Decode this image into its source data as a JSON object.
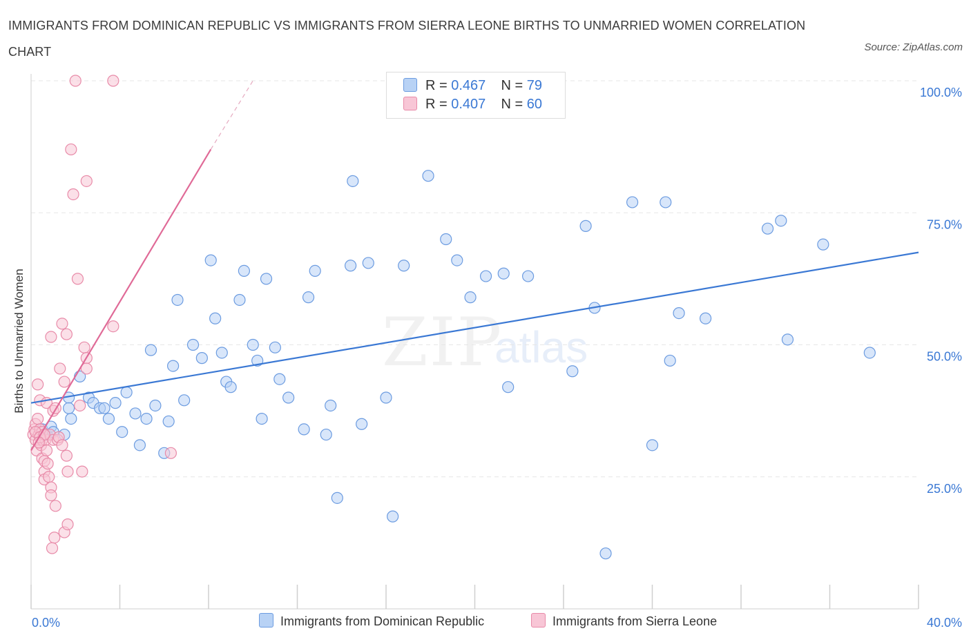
{
  "title": "IMMIGRANTS FROM DOMINICAN REPUBLIC VS IMMIGRANTS FROM SIERRA LEONE BIRTHS TO UNMARRIED WOMEN CORRELATION CHART",
  "source": "Source: ZipAtlas.com",
  "watermark": {
    "zip": "ZIP",
    "atlas": "atlas"
  },
  "legend_top": [
    {
      "r_label": "R =",
      "r_value": "0.467",
      "n_label": "N =",
      "n_value": "79"
    },
    {
      "r_label": "R =",
      "r_value": "0.407",
      "n_label": "N =",
      "n_value": "60"
    }
  ],
  "legend_bottom": [
    "Immigrants from Dominican Republic",
    "Immigrants from Sierra Leone"
  ],
  "colors": {
    "blue_fill": "#b8d2f5",
    "blue_stroke": "#6b9be0",
    "blue_line": "#3a78d4",
    "pink_fill": "#f8c6d6",
    "pink_stroke": "#e88aa8",
    "pink_line": "#e06a97",
    "tick_label": "#3a78d4",
    "grid": "#e6e6e6"
  },
  "chart_data": {
    "type": "scatter",
    "xlabel": "",
    "ylabel": "Births to Unmarried Women",
    "xlim": [
      0,
      40
    ],
    "ylim": [
      0,
      100
    ],
    "x_tick_labels": [
      {
        "v": 0,
        "t": "0.0%"
      },
      {
        "v": 40,
        "t": "40.0%"
      }
    ],
    "y_tick_labels": [
      {
        "v": 25,
        "t": "25.0%"
      },
      {
        "v": 50,
        "t": "50.0%"
      },
      {
        "v": 75,
        "t": "75.0%"
      },
      {
        "v": 100,
        "t": "100.0%"
      }
    ],
    "grid": true,
    "series": [
      {
        "name": "Immigrants from Dominican Republic",
        "color": "blue",
        "points": [
          [
            0.5,
            34
          ],
          [
            0.7,
            33
          ],
          [
            0.9,
            34.5
          ],
          [
            1.0,
            33.5
          ],
          [
            1.5,
            33
          ],
          [
            1.7,
            40
          ],
          [
            1.8,
            36
          ],
          [
            1.7,
            38
          ],
          [
            2.2,
            44
          ],
          [
            2.6,
            40
          ],
          [
            2.8,
            39
          ],
          [
            3.1,
            38
          ],
          [
            3.3,
            38
          ],
          [
            3.5,
            36
          ],
          [
            3.8,
            39
          ],
          [
            4.1,
            33.5
          ],
          [
            4.3,
            41
          ],
          [
            4.7,
            37
          ],
          [
            4.9,
            31
          ],
          [
            5.2,
            36
          ],
          [
            5.4,
            49
          ],
          [
            5.6,
            38.5
          ],
          [
            6.0,
            29.5
          ],
          [
            6.2,
            35.5
          ],
          [
            6.4,
            46
          ],
          [
            6.6,
            58.5
          ],
          [
            6.9,
            39.5
          ],
          [
            7.3,
            50
          ],
          [
            7.7,
            47.5
          ],
          [
            8.1,
            66
          ],
          [
            8.3,
            55
          ],
          [
            8.6,
            48.5
          ],
          [
            8.8,
            43
          ],
          [
            9.0,
            42
          ],
          [
            9.4,
            58.5
          ],
          [
            9.6,
            64
          ],
          [
            10.0,
            50
          ],
          [
            10.2,
            47
          ],
          [
            10.4,
            36
          ],
          [
            10.6,
            62.5
          ],
          [
            11.0,
            49.5
          ],
          [
            11.2,
            43.5
          ],
          [
            11.6,
            40
          ],
          [
            12.3,
            34
          ],
          [
            12.5,
            59
          ],
          [
            12.8,
            64
          ],
          [
            13.3,
            33
          ],
          [
            13.5,
            38.5
          ],
          [
            13.8,
            21
          ],
          [
            14.4,
            65
          ],
          [
            14.5,
            81
          ],
          [
            14.9,
            35
          ],
          [
            15.2,
            65.5
          ],
          [
            16.0,
            40
          ],
          [
            16.3,
            17.5
          ],
          [
            16.8,
            65
          ],
          [
            17.9,
            82
          ],
          [
            18.7,
            70
          ],
          [
            19.2,
            66
          ],
          [
            19.8,
            59
          ],
          [
            20.5,
            63
          ],
          [
            21.3,
            63.5
          ],
          [
            21.5,
            42
          ],
          [
            22.4,
            63
          ],
          [
            24.4,
            45
          ],
          [
            25.0,
            72.5
          ],
          [
            25.4,
            57
          ],
          [
            25.9,
            10.5
          ],
          [
            27.1,
            77
          ],
          [
            28.0,
            31
          ],
          [
            28.6,
            77
          ],
          [
            28.8,
            47
          ],
          [
            29.2,
            56
          ],
          [
            30.4,
            55
          ],
          [
            33.2,
            72
          ],
          [
            33.8,
            73.5
          ],
          [
            34.1,
            51
          ],
          [
            35.7,
            69
          ],
          [
            37.8,
            48.5
          ]
        ],
        "trend": {
          "x": [
            0,
            40
          ],
          "y": [
            39,
            67.5
          ]
        }
      },
      {
        "name": "Immigrants from Sierra Leone",
        "color": "pink",
        "points": [
          [
            0.1,
            33
          ],
          [
            0.15,
            34
          ],
          [
            0.2,
            35
          ],
          [
            0.2,
            32
          ],
          [
            0.25,
            30
          ],
          [
            0.3,
            36
          ],
          [
            0.3,
            42.5
          ],
          [
            0.35,
            33
          ],
          [
            0.4,
            34
          ],
          [
            0.4,
            39.5
          ],
          [
            0.45,
            31
          ],
          [
            0.5,
            32
          ],
          [
            0.5,
            33.5
          ],
          [
            0.5,
            28.5
          ],
          [
            0.6,
            28
          ],
          [
            0.6,
            26
          ],
          [
            0.6,
            24.5
          ],
          [
            0.65,
            32
          ],
          [
            0.7,
            39
          ],
          [
            0.7,
            30
          ],
          [
            0.75,
            27.5
          ],
          [
            0.8,
            25
          ],
          [
            0.85,
            33
          ],
          [
            0.9,
            51.5
          ],
          [
            0.9,
            23
          ],
          [
            0.9,
            21.5
          ],
          [
            0.95,
            11.5
          ],
          [
            1.0,
            32
          ],
          [
            1.0,
            37.5
          ],
          [
            1.05,
            13.5
          ],
          [
            1.1,
            19.5
          ],
          [
            1.1,
            38
          ],
          [
            1.2,
            32
          ],
          [
            1.25,
            32.5
          ],
          [
            1.3,
            45.5
          ],
          [
            1.4,
            54
          ],
          [
            1.4,
            31
          ],
          [
            1.5,
            43
          ],
          [
            1.5,
            14.5
          ],
          [
            1.6,
            52
          ],
          [
            1.6,
            29
          ],
          [
            1.65,
            26
          ],
          [
            1.65,
            16
          ],
          [
            1.8,
            87
          ],
          [
            1.9,
            78.5
          ],
          [
            2.0,
            100
          ],
          [
            2.1,
            62.5
          ],
          [
            2.2,
            38.5
          ],
          [
            2.3,
            26
          ],
          [
            2.4,
            49.5
          ],
          [
            2.5,
            47.5
          ],
          [
            2.5,
            45.5
          ],
          [
            2.5,
            81
          ],
          [
            3.7,
            100
          ],
          [
            3.7,
            53.5
          ],
          [
            6.3,
            29.5
          ],
          [
            0.2,
            33.5
          ],
          [
            0.4,
            32.5
          ],
          [
            0.6,
            33
          ],
          [
            0.35,
            31.5
          ]
        ],
        "trend": {
          "x": [
            0,
            8.1
          ],
          "y": [
            30,
            87
          ]
        },
        "trend_dashed": {
          "x": [
            8.1,
            10
          ],
          "y": [
            87,
            100
          ]
        }
      }
    ]
  }
}
